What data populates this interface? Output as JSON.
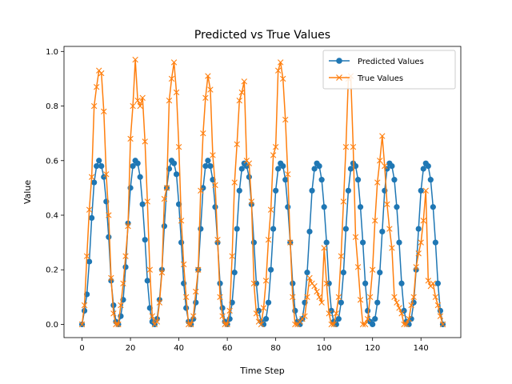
{
  "chart_data": {
    "type": "line",
    "title": "Predicted vs True Values",
    "xlabel": "Time Step",
    "ylabel": "Value",
    "xlim": [
      -7.45,
      156.45
    ],
    "ylim": [
      -0.0485,
      1.0185
    ],
    "x_ticks": [
      "0",
      "20",
      "40",
      "60",
      "80",
      "100",
      "120",
      "140"
    ],
    "y_ticks": [
      "0.0",
      "0.2",
      "0.4",
      "0.6",
      "0.8",
      "1.0"
    ],
    "grid": false,
    "legend_position": "top-right",
    "series": [
      {
        "name": "Predicted Values",
        "color": "#1f77b4",
        "marker": "circle",
        "values": [
          0.0,
          0.05,
          0.11,
          0.23,
          0.39,
          0.52,
          0.58,
          0.6,
          0.58,
          0.54,
          0.45,
          0.32,
          0.16,
          0.07,
          0.01,
          0.0,
          0.03,
          0.09,
          0.21,
          0.37,
          0.5,
          0.58,
          0.6,
          0.59,
          0.54,
          0.44,
          0.31,
          0.16,
          0.06,
          0.01,
          0.0,
          0.02,
          0.09,
          0.2,
          0.36,
          0.5,
          0.57,
          0.6,
          0.59,
          0.55,
          0.44,
          0.3,
          0.15,
          0.06,
          0.01,
          0.0,
          0.02,
          0.08,
          0.2,
          0.35,
          0.5,
          0.58,
          0.6,
          0.58,
          0.53,
          0.43,
          0.3,
          0.15,
          0.06,
          0.01,
          0.0,
          0.02,
          0.08,
          0.19,
          0.35,
          0.49,
          0.57,
          0.59,
          0.58,
          0.54,
          0.44,
          0.3,
          0.15,
          0.05,
          0.01,
          0.0,
          0.02,
          0.08,
          0.2,
          0.35,
          0.49,
          0.57,
          0.59,
          0.58,
          0.53,
          0.43,
          0.3,
          0.15,
          0.05,
          0.01,
          0.0,
          0.02,
          0.08,
          0.19,
          0.34,
          0.49,
          0.57,
          0.59,
          0.58,
          0.53,
          0.43,
          0.3,
          0.15,
          0.05,
          0.01,
          0.0,
          0.02,
          0.08,
          0.19,
          0.35,
          0.49,
          0.57,
          0.59,
          0.58,
          0.53,
          0.43,
          0.3,
          0.15,
          0.05,
          0.01,
          0.0,
          0.02,
          0.08,
          0.19,
          0.34,
          0.49,
          0.57,
          0.59,
          0.58,
          0.53,
          0.43,
          0.3,
          0.15,
          0.05,
          0.01,
          0.0,
          0.02,
          0.08,
          0.2,
          0.35,
          0.49,
          0.57,
          0.59,
          0.58,
          0.53,
          0.43,
          0.3,
          0.15,
          0.05,
          0.0
        ]
      },
      {
        "name": "True Values",
        "color": "#ff7f0e",
        "marker": "x",
        "values": [
          0.0,
          0.07,
          0.25,
          0.42,
          0.54,
          0.8,
          0.87,
          0.93,
          0.92,
          0.78,
          0.55,
          0.4,
          0.17,
          0.04,
          0.0,
          0.0,
          0.07,
          0.15,
          0.25,
          0.36,
          0.68,
          0.8,
          0.97,
          0.82,
          0.8,
          0.83,
          0.67,
          0.45,
          0.2,
          0.03,
          0.0,
          0.01,
          0.08,
          0.19,
          0.46,
          0.5,
          0.82,
          0.9,
          0.96,
          0.85,
          0.65,
          0.38,
          0.22,
          0.1,
          0.0,
          0.0,
          0.03,
          0.12,
          0.2,
          0.49,
          0.7,
          0.83,
          0.91,
          0.86,
          0.62,
          0.51,
          0.31,
          0.1,
          0.03,
          0.0,
          0.0,
          0.05,
          0.25,
          0.52,
          0.66,
          0.82,
          0.85,
          0.89,
          0.6,
          0.59,
          0.45,
          0.15,
          0.04,
          0.01,
          0.0,
          0.06,
          0.16,
          0.31,
          0.42,
          0.62,
          0.65,
          0.93,
          0.96,
          0.9,
          0.75,
          0.55,
          0.3,
          0.1,
          0.0,
          0.0,
          0.01,
          0.02,
          0.03,
          0.1,
          0.17,
          0.15,
          0.14,
          0.12,
          0.1,
          0.08,
          0.28,
          0.15,
          0.04,
          0.0,
          0.0,
          0.04,
          0.1,
          0.25,
          0.45,
          0.65,
          0.9,
          0.91,
          0.65,
          0.32,
          0.21,
          0.09,
          0.0,
          0.0,
          0.02,
          0.1,
          0.2,
          0.38,
          0.52,
          0.6,
          0.69,
          0.58,
          0.44,
          0.35,
          0.28,
          0.1,
          0.08,
          0.06,
          0.04,
          0.0,
          0.0,
          0.02,
          0.07,
          0.1,
          0.21,
          0.26,
          0.3,
          0.38,
          0.49,
          0.16,
          0.14,
          0.15,
          0.1,
          0.07,
          0.03,
          0.0
        ]
      }
    ]
  }
}
